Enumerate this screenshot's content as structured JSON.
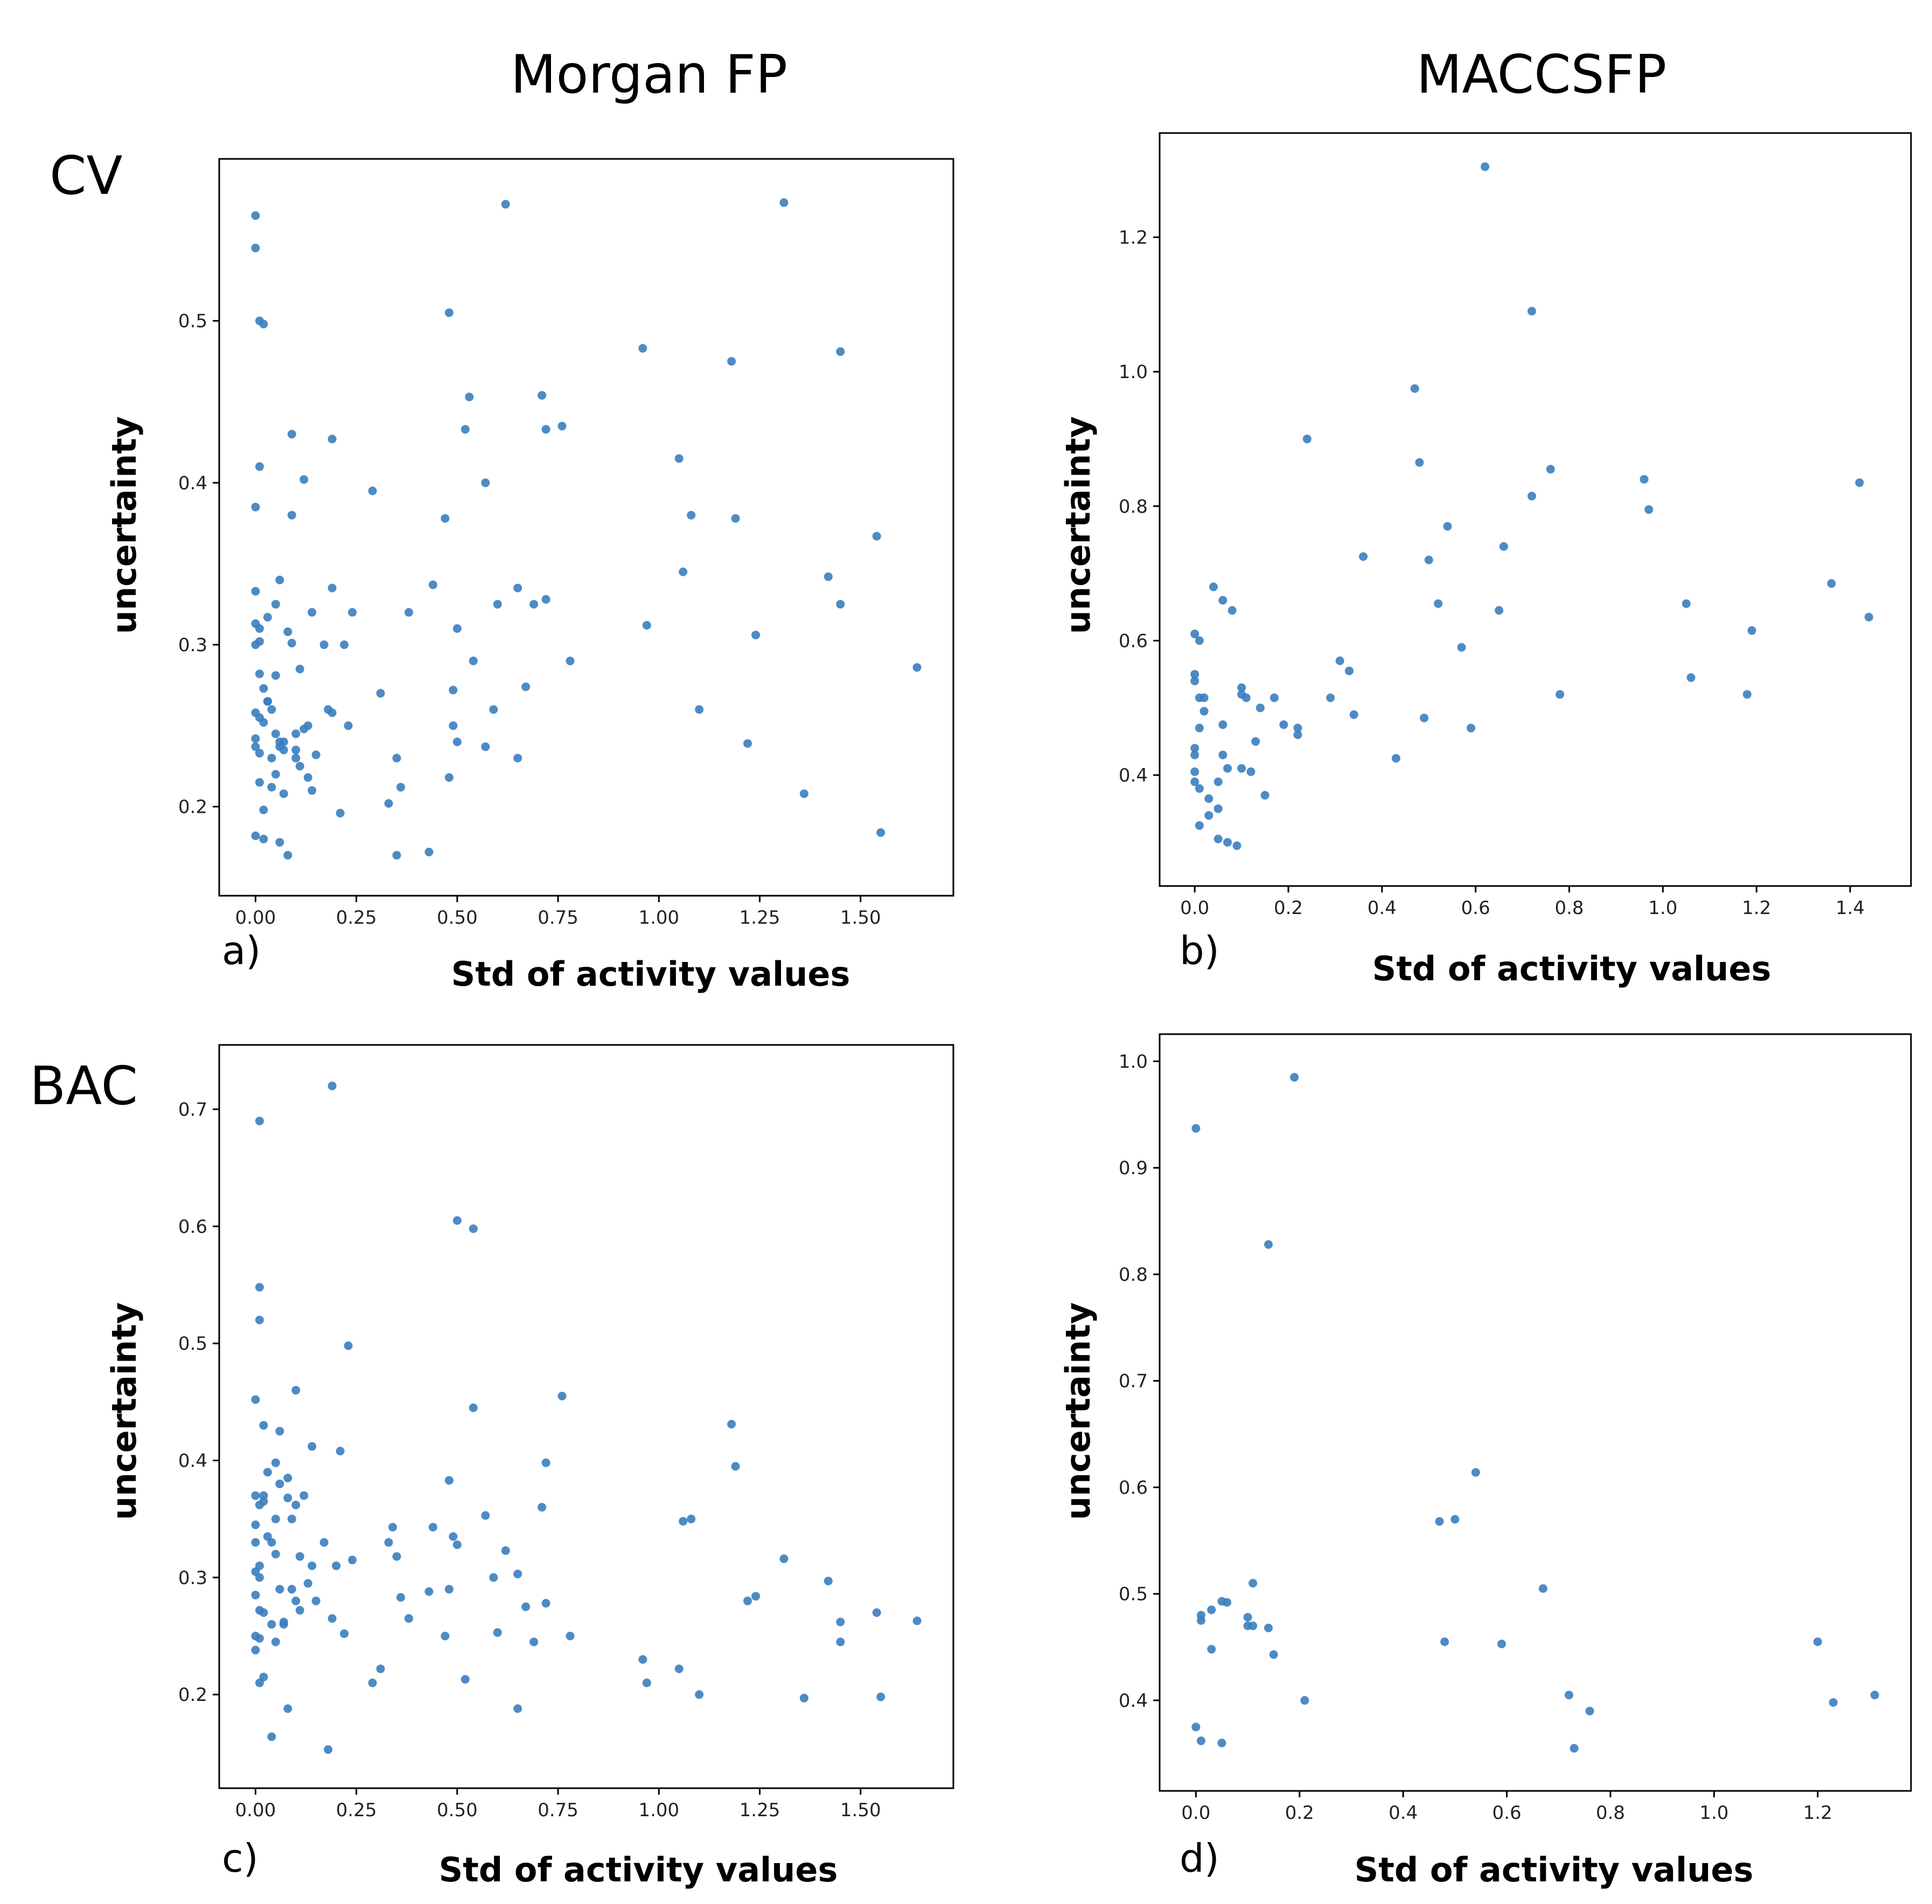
{
  "column_titles": [
    "Morgan FP",
    "MACCSFP"
  ],
  "row_labels": [
    "CV",
    "BAC"
  ],
  "chart_data": [
    {
      "type": "scatter",
      "panel": "a)",
      "row": "CV",
      "fingerprint": "Morgan FP",
      "xlabel": "Std of activity values",
      "ylabel": "uncertainty",
      "xlim": [
        -0.09,
        1.73
      ],
      "ylim": [
        0.145,
        0.6
      ],
      "xticks": [
        0.0,
        0.25,
        0.5,
        0.75,
        1.0,
        1.25,
        1.5
      ],
      "xtick_labels": [
        "0.00",
        "0.25",
        "0.50",
        "0.75",
        "1.00",
        "1.25",
        "1.50"
      ],
      "yticks": [
        0.2,
        0.3,
        0.4,
        0.5
      ],
      "ytick_labels": [
        "0.2",
        "0.3",
        "0.4",
        "0.5"
      ],
      "x": [
        0.0,
        0.0,
        0.01,
        0.02,
        0.01,
        0.0,
        0.0,
        0.0,
        0.01,
        0.01,
        0.0,
        0.01,
        0.0,
        0.01,
        0.0,
        0.0,
        0.01,
        0.02,
        0.0,
        0.02,
        0.01,
        0.03,
        0.02,
        0.03,
        0.04,
        0.05,
        0.04,
        0.05,
        0.06,
        0.05,
        0.06,
        0.07,
        0.07,
        0.08,
        0.08,
        0.09,
        0.09,
        0.1,
        0.1,
        0.11,
        0.11,
        0.12,
        0.13,
        0.14,
        0.14,
        0.15,
        0.17,
        0.19,
        0.18,
        0.19,
        0.21,
        0.22,
        0.23,
        0.24,
        0.29,
        0.31,
        0.33,
        0.35,
        0.35,
        0.36,
        0.38,
        0.43,
        0.44,
        0.47,
        0.48,
        0.48,
        0.49,
        0.49,
        0.5,
        0.5,
        0.52,
        0.53,
        0.54,
        0.57,
        0.57,
        0.59,
        0.6,
        0.62,
        0.65,
        0.65,
        0.67,
        0.69,
        0.71,
        0.72,
        0.72,
        0.76,
        0.78,
        0.96,
        0.97,
        1.05,
        1.06,
        1.08,
        1.1,
        1.18,
        1.19,
        1.22,
        1.24,
        1.31,
        1.36,
        1.42,
        1.45,
        1.45,
        1.54,
        1.55,
        1.64,
        0.05,
        0.09,
        0.19,
        0.02,
        0.06,
        0.12,
        0.04,
        0.03,
        0.07,
        0.1,
        0.13,
        0.06
      ],
      "y": [
        0.565,
        0.545,
        0.5,
        0.498,
        0.41,
        0.385,
        0.333,
        0.313,
        0.31,
        0.302,
        0.3,
        0.282,
        0.258,
        0.255,
        0.242,
        0.237,
        0.233,
        0.198,
        0.182,
        0.18,
        0.215,
        0.317,
        0.273,
        0.265,
        0.26,
        0.245,
        0.23,
        0.22,
        0.34,
        0.325,
        0.24,
        0.235,
        0.208,
        0.308,
        0.17,
        0.43,
        0.38,
        0.245,
        0.235,
        0.225,
        0.285,
        0.402,
        0.25,
        0.32,
        0.21,
        0.232,
        0.3,
        0.427,
        0.26,
        0.335,
        0.196,
        0.3,
        0.25,
        0.32,
        0.395,
        0.27,
        0.202,
        0.17,
        0.23,
        0.212,
        0.32,
        0.172,
        0.337,
        0.378,
        0.505,
        0.218,
        0.25,
        0.272,
        0.31,
        0.24,
        0.433,
        0.453,
        0.29,
        0.4,
        0.237,
        0.26,
        0.325,
        0.572,
        0.335,
        0.23,
        0.274,
        0.325,
        0.454,
        0.328,
        0.433,
        0.435,
        0.29,
        0.483,
        0.312,
        0.415,
        0.345,
        0.38,
        0.26,
        0.475,
        0.378,
        0.239,
        0.306,
        0.573,
        0.208,
        0.342,
        0.481,
        0.325,
        0.367,
        0.184,
        0.286,
        0.281,
        0.301,
        0.258,
        0.252,
        0.237,
        0.248,
        0.212,
        0.265,
        0.24,
        0.23,
        0.218,
        0.178
      ]
    },
    {
      "type": "scatter",
      "panel": "b)",
      "row": "CV",
      "fingerprint": "MACCSFP",
      "xlabel": "Std of activity values",
      "ylabel": "uncertainty",
      "xlim": [
        -0.075,
        1.53
      ],
      "ylim": [
        0.235,
        1.355
      ],
      "xticks": [
        0.0,
        0.2,
        0.4,
        0.6,
        0.8,
        1.0,
        1.2,
        1.4
      ],
      "xtick_labels": [
        "0.0",
        "0.2",
        "0.4",
        "0.6",
        "0.8",
        "1.0",
        "1.2",
        "1.4"
      ],
      "yticks": [
        0.4,
        0.6,
        0.8,
        1.0,
        1.2
      ],
      "ytick_labels": [
        "0.4",
        "0.6",
        "0.8",
        "1.0",
        "1.2"
      ],
      "x": [
        0.0,
        0.0,
        0.01,
        0.01,
        0.0,
        0.0,
        0.01,
        0.01,
        0.0,
        0.0,
        0.0,
        0.01,
        0.02,
        0.02,
        0.03,
        0.03,
        0.04,
        0.05,
        0.05,
        0.05,
        0.06,
        0.06,
        0.06,
        0.07,
        0.07,
        0.08,
        0.09,
        0.1,
        0.1,
        0.1,
        0.11,
        0.12,
        0.13,
        0.14,
        0.15,
        0.17,
        0.19,
        0.22,
        0.22,
        0.24,
        0.29,
        0.31,
        0.33,
        0.34,
        0.36,
        0.43,
        0.47,
        0.48,
        0.49,
        0.5,
        0.52,
        0.54,
        0.57,
        0.59,
        0.62,
        0.65,
        0.66,
        0.72,
        0.72,
        0.76,
        0.78,
        0.96,
        0.97,
        1.05,
        1.06,
        1.18,
        1.19,
        1.36,
        1.42,
        1.44
      ],
      "y": [
        0.61,
        0.54,
        0.515,
        0.47,
        0.44,
        0.405,
        0.38,
        0.325,
        0.39,
        0.43,
        0.55,
        0.6,
        0.515,
        0.495,
        0.365,
        0.34,
        0.68,
        0.39,
        0.35,
        0.305,
        0.475,
        0.43,
        0.66,
        0.3,
        0.41,
        0.645,
        0.295,
        0.53,
        0.52,
        0.41,
        0.515,
        0.405,
        0.45,
        0.5,
        0.37,
        0.515,
        0.475,
        0.47,
        0.46,
        0.9,
        0.515,
        0.57,
        0.555,
        0.49,
        0.725,
        0.425,
        0.975,
        0.865,
        0.485,
        0.72,
        0.655,
        0.77,
        0.59,
        0.47,
        1.305,
        0.645,
        0.74,
        1.09,
        0.815,
        0.855,
        0.52,
        0.84,
        0.795,
        0.655,
        0.545,
        0.52,
        0.615,
        0.685,
        0.835,
        0.635
      ]
    },
    {
      "type": "scatter",
      "panel": "c)",
      "row": "BAC",
      "fingerprint": "Morgan FP",
      "xlabel": "Std of activity values",
      "ylabel": "uncertainty",
      "xlim": [
        -0.09,
        1.73
      ],
      "ylim": [
        0.12,
        0.755
      ],
      "xticks": [
        0.0,
        0.25,
        0.5,
        0.75,
        1.0,
        1.25,
        1.5
      ],
      "xtick_labels": [
        "0.00",
        "0.25",
        "0.50",
        "0.75",
        "1.00",
        "1.25",
        "1.50"
      ],
      "yticks": [
        0.2,
        0.3,
        0.4,
        0.5,
        0.6,
        0.7
      ],
      "ytick_labels": [
        "0.2",
        "0.3",
        "0.4",
        "0.5",
        "0.6",
        "0.7"
      ],
      "x": [
        0.01,
        0.01,
        0.01,
        0.02,
        0.0,
        0.0,
        0.0,
        0.01,
        0.0,
        0.0,
        0.01,
        0.0,
        0.01,
        0.0,
        0.01,
        0.0,
        0.01,
        0.01,
        0.02,
        0.02,
        0.02,
        0.03,
        0.03,
        0.04,
        0.04,
        0.05,
        0.05,
        0.05,
        0.06,
        0.06,
        0.06,
        0.07,
        0.07,
        0.08,
        0.08,
        0.09,
        0.09,
        0.1,
        0.1,
        0.11,
        0.11,
        0.12,
        0.13,
        0.14,
        0.14,
        0.15,
        0.17,
        0.19,
        0.19,
        0.2,
        0.21,
        0.22,
        0.23,
        0.24,
        0.29,
        0.31,
        0.33,
        0.34,
        0.35,
        0.36,
        0.38,
        0.43,
        0.44,
        0.47,
        0.48,
        0.48,
        0.49,
        0.5,
        0.5,
        0.52,
        0.54,
        0.54,
        0.57,
        0.59,
        0.6,
        0.62,
        0.65,
        0.65,
        0.67,
        0.69,
        0.71,
        0.72,
        0.72,
        0.76,
        0.78,
        0.96,
        0.97,
        1.05,
        1.06,
        1.08,
        1.1,
        1.18,
        1.19,
        1.22,
        1.24,
        1.31,
        1.36,
        1.42,
        1.45,
        1.45,
        1.54,
        1.55,
        1.64,
        0.02,
        0.04,
        0.05,
        0.08,
        0.1,
        0.18
      ],
      "y": [
        0.69,
        0.548,
        0.52,
        0.43,
        0.452,
        0.37,
        0.345,
        0.362,
        0.33,
        0.305,
        0.3,
        0.285,
        0.272,
        0.25,
        0.248,
        0.238,
        0.21,
        0.31,
        0.37,
        0.365,
        0.27,
        0.335,
        0.39,
        0.33,
        0.26,
        0.35,
        0.398,
        0.32,
        0.425,
        0.38,
        0.29,
        0.262,
        0.26,
        0.385,
        0.368,
        0.35,
        0.29,
        0.46,
        0.28,
        0.318,
        0.272,
        0.37,
        0.295,
        0.412,
        0.31,
        0.28,
        0.33,
        0.72,
        0.265,
        0.31,
        0.408,
        0.252,
        0.498,
        0.315,
        0.21,
        0.222,
        0.33,
        0.343,
        0.318,
        0.283,
        0.265,
        0.288,
        0.343,
        0.25,
        0.383,
        0.29,
        0.335,
        0.605,
        0.328,
        0.213,
        0.598,
        0.445,
        0.353,
        0.3,
        0.253,
        0.323,
        0.303,
        0.188,
        0.275,
        0.245,
        0.36,
        0.398,
        0.278,
        0.455,
        0.25,
        0.23,
        0.21,
        0.222,
        0.348,
        0.35,
        0.2,
        0.431,
        0.395,
        0.28,
        0.284,
        0.316,
        0.197,
        0.297,
        0.245,
        0.262,
        0.27,
        0.198,
        0.263,
        0.215,
        0.164,
        0.245,
        0.188,
        0.362,
        0.153
      ]
    },
    {
      "type": "scatter",
      "panel": "d)",
      "row": "BAC",
      "fingerprint": "MACCSFP",
      "xlabel": "Std of activity values",
      "ylabel": "uncertainty",
      "xlim": [
        -0.07,
        1.38
      ],
      "ylim": [
        0.315,
        1.0255
      ],
      "xticks": [
        0.0,
        0.2,
        0.4,
        0.6,
        0.8,
        1.0,
        1.2
      ],
      "xtick_labels": [
        "0.0",
        "0.2",
        "0.4",
        "0.6",
        "0.8",
        "1.0",
        "1.2"
      ],
      "yticks": [
        0.4,
        0.5,
        0.6,
        0.7,
        0.8,
        0.9,
        1.0
      ],
      "ytick_labels": [
        "0.4",
        "0.5",
        "0.6",
        "0.7",
        "0.8",
        "0.9",
        "1.0"
      ],
      "x": [
        0.0,
        0.01,
        0.01,
        0.0,
        0.01,
        0.03,
        0.03,
        0.05,
        0.06,
        0.05,
        0.1,
        0.1,
        0.11,
        0.11,
        0.14,
        0.14,
        0.15,
        0.19,
        0.21,
        0.47,
        0.48,
        0.5,
        0.54,
        0.59,
        0.67,
        0.72,
        0.73,
        0.76,
        1.2,
        1.23,
        1.31
      ],
      "y": [
        0.937,
        0.48,
        0.475,
        0.375,
        0.362,
        0.448,
        0.485,
        0.36,
        0.492,
        0.493,
        0.478,
        0.47,
        0.47,
        0.51,
        0.468,
        0.828,
        0.443,
        0.985,
        0.4,
        0.568,
        0.455,
        0.57,
        0.614,
        0.453,
        0.505,
        0.405,
        0.355,
        0.39,
        0.455,
        0.398,
        0.405
      ]
    }
  ]
}
